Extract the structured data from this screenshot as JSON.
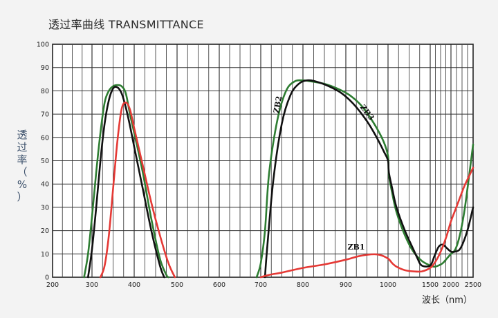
{
  "chart_data": {
    "type": "line",
    "title": "透过率曲线 TRANSMITTANCE",
    "ylabel_chars": [
      "透",
      "过",
      "率",
      "（",
      "%",
      "）"
    ],
    "xlabel": "波长（nm）",
    "x_ticks": [
      {
        "wavelength": 200,
        "label": "200"
      },
      {
        "wavelength": 300,
        "label": "300"
      },
      {
        "wavelength": 400,
        "label": "400"
      },
      {
        "wavelength": 500,
        "label": "500"
      },
      {
        "wavelength": 600,
        "label": "600"
      },
      {
        "wavelength": 700,
        "label": "700"
      },
      {
        "wavelength": 800,
        "label": "800"
      },
      {
        "wavelength": 900,
        "label": "900"
      },
      {
        "wavelength": 1000,
        "label": "1000"
      },
      {
        "wavelength": 1500,
        "label": "1500"
      },
      {
        "wavelength": 2000,
        "label": "2000"
      },
      {
        "wavelength": 2500,
        "label": "2500"
      }
    ],
    "x_scale": "nonlinear (linear 200–1000 nm, compressed 1000–2500 nm)",
    "ylim": [
      0,
      100
    ],
    "y_ticks": [
      0,
      10,
      20,
      30,
      40,
      50,
      60,
      70,
      80,
      90,
      100
    ],
    "grid": true,
    "series": [
      {
        "name": "",
        "color": "#2e7d32",
        "x": [
          280,
          290,
          300,
          310,
          320,
          330,
          340,
          350,
          360,
          370,
          380,
          390,
          400,
          420,
          440,
          460,
          475,
          480
        ],
        "y": [
          0,
          10,
          26,
          45,
          62,
          75,
          80,
          82,
          82.5,
          82,
          79,
          70,
          62,
          45,
          25,
          8,
          1,
          0
        ]
      },
      {
        "name": "",
        "color": "#111111",
        "x": [
          290,
          300,
          310,
          320,
          330,
          340,
          350,
          360,
          370,
          380,
          390,
          400,
          420,
          440,
          460,
          470
        ],
        "y": [
          0,
          12,
          30,
          50,
          66,
          76,
          81,
          81.5,
          79,
          73,
          65,
          56,
          38,
          20,
          5,
          0
        ]
      },
      {
        "name": "",
        "color": "#e53935",
        "x": [
          320,
          330,
          340,
          350,
          360,
          370,
          380,
          390,
          400,
          420,
          440,
          460,
          480,
          495
        ],
        "y": [
          0,
          5,
          18,
          38,
          58,
          72,
          75,
          72,
          64,
          48,
          32,
          18,
          6,
          0
        ]
      },
      {
        "name": "ZB2",
        "color": "#2e7d32",
        "x": [
          690,
          700,
          710,
          720,
          740,
          760,
          780,
          800,
          820,
          850,
          880,
          910,
          940,
          970,
          990,
          1000,
          1010,
          1050,
          1100,
          1200,
          1300,
          1400,
          1500,
          1600,
          1700,
          1800,
          1900,
          2000,
          2100,
          2200,
          2300,
          2400,
          2500
        ],
        "y": [
          0,
          6,
          20,
          45,
          68,
          80,
          84,
          84.5,
          84,
          83,
          81,
          78,
          73,
          65,
          58,
          52,
          44,
          36,
          28,
          18,
          11,
          7,
          5,
          4.5,
          5,
          6,
          8,
          10,
          12,
          18,
          28,
          42,
          57
        ]
      },
      {
        "name": "ZB3",
        "color": "#111111",
        "x": [
          710,
          715,
          730,
          750,
          770,
          790,
          810,
          830,
          860,
          890,
          920,
          950,
          970,
          990,
          1000,
          1010,
          1050,
          1100,
          1200,
          1300,
          1350,
          1400,
          1500,
          1600,
          1700,
          1800,
          1900,
          2000,
          2100,
          2200,
          2300,
          2400,
          2500
        ],
        "y": [
          0,
          12,
          42,
          66,
          78,
          83,
          84.5,
          84,
          82,
          79,
          74,
          67,
          61,
          54,
          50,
          45,
          38,
          30,
          20,
          12,
          8,
          5,
          5,
          9,
          13,
          14,
          12.5,
          11,
          11,
          12,
          16,
          22,
          30
        ]
      },
      {
        "name": "ZB1",
        "color": "#e53935",
        "x": [
          700,
          720,
          750,
          800,
          850,
          900,
          930,
          960,
          980,
          1000,
          1050,
          1100,
          1200,
          1300,
          1400,
          1500,
          1600,
          1700,
          1800,
          1900,
          2000,
          2100,
          2200,
          2300,
          2400,
          2500
        ],
        "y": [
          0,
          1,
          2,
          4,
          5.5,
          7.5,
          9,
          9.8,
          9.6,
          8,
          6,
          4.5,
          3,
          2.5,
          2.5,
          4,
          6,
          9,
          13,
          18,
          24,
          29,
          34,
          39,
          43,
          47
        ]
      }
    ],
    "annotations": [
      {
        "text": "ZB2",
        "series": "ZB2"
      },
      {
        "text": "ZB3",
        "series": "ZB3"
      },
      {
        "text": "ZB1",
        "series": "ZB1"
      }
    ]
  }
}
